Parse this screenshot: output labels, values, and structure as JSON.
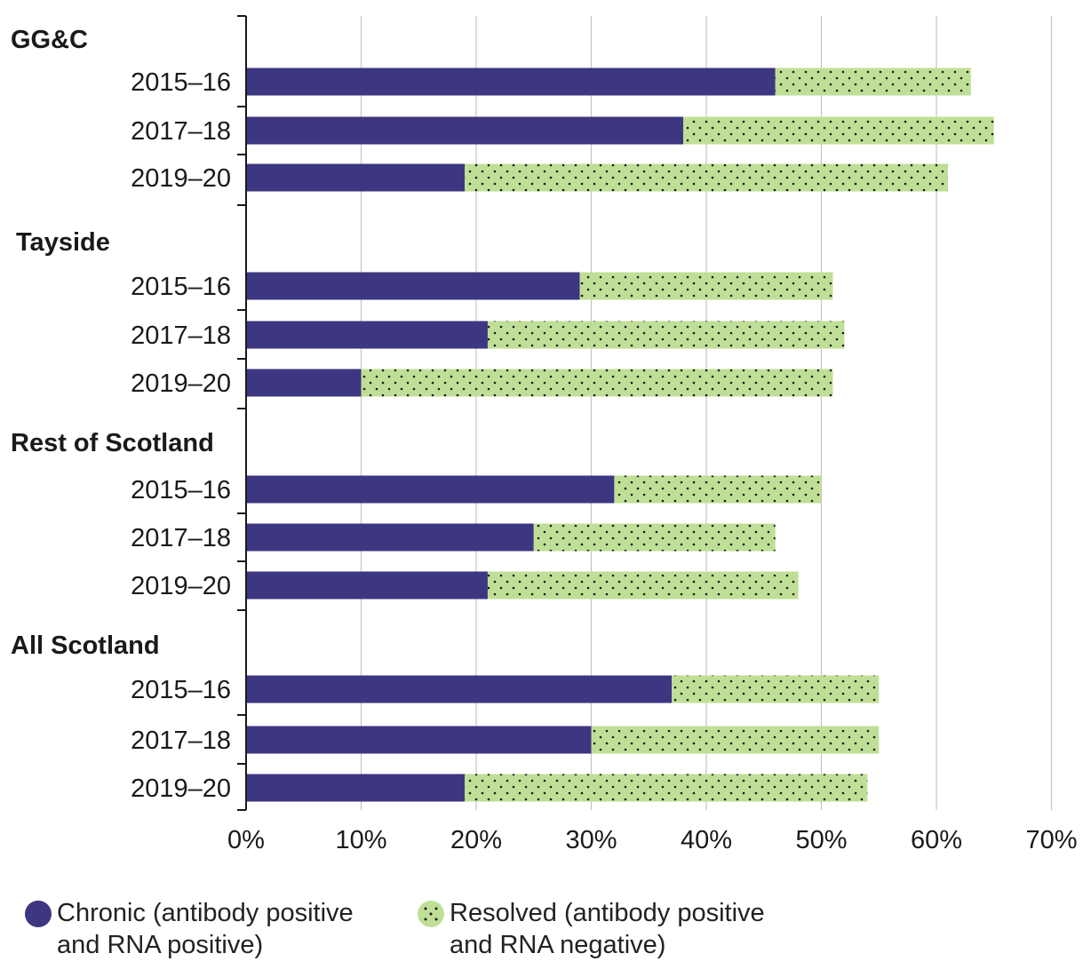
{
  "chart_data": {
    "type": "bar",
    "orientation": "horizontal",
    "stacked": true,
    "groups": [
      {
        "name": "GG&C",
        "categories": [
          "2015–16",
          "2017–18",
          "2019–20"
        ],
        "chronic": [
          46,
          38,
          19
        ],
        "resolved": [
          17,
          27,
          42
        ]
      },
      {
        "name": "Tayside",
        "categories": [
          "2015–16",
          "2017–18",
          "2019–20"
        ],
        "chronic": [
          29,
          21,
          10
        ],
        "resolved": [
          22,
          31,
          41
        ]
      },
      {
        "name": "Rest of Scotland",
        "categories": [
          "2015–16",
          "2017–18",
          "2019–20"
        ],
        "chronic": [
          32,
          25,
          21
        ],
        "resolved": [
          18,
          21,
          27
        ]
      },
      {
        "name": "All Scotland",
        "categories": [
          "2015–16",
          "2017–18",
          "2019–20"
        ],
        "chronic": [
          37,
          30,
          19
        ],
        "resolved": [
          18,
          25,
          35
        ]
      }
    ],
    "series": [
      {
        "key": "chronic",
        "name_line1": "Chronic (antibody positive",
        "name_line2": "and RNA positive)",
        "color": "#3d3680"
      },
      {
        "key": "resolved",
        "name_line1": "Resolved (antibody positive",
        "name_line2": "and RNA negative)",
        "color": "#bfdf96",
        "pattern": "dots"
      }
    ],
    "xlim": [
      0,
      70
    ],
    "xticks": [
      "0%",
      "10%",
      "20%",
      "30%",
      "40%",
      "50%",
      "60%",
      "70%"
    ],
    "grid": true,
    "legend_position": "bottom"
  }
}
